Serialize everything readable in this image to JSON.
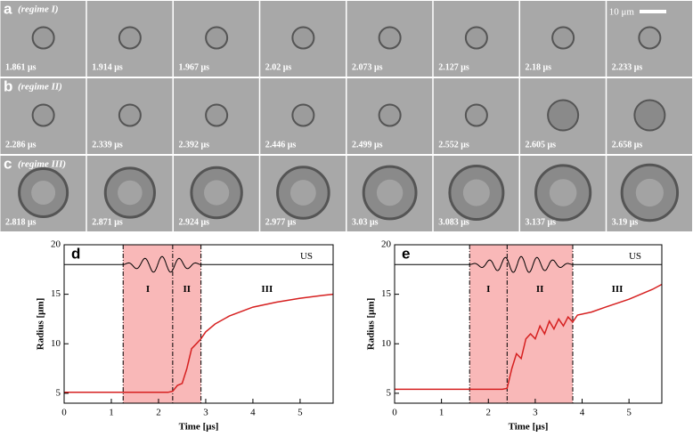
{
  "panels": [
    {
      "label": "a",
      "regime": "(regime I)",
      "frames": [
        "1.861 μs",
        "1.914 μs",
        "1.967 μs",
        "2.02 μs",
        "2.073 μs",
        "2.127 μs",
        "2.18 μs",
        "2.233 μs"
      ]
    },
    {
      "label": "b",
      "regime": "(regime II)",
      "frames": [
        "2.286 μs",
        "2.339 μs",
        "2.392 μs",
        "2.446 μs",
        "2.499 μs",
        "2.552 μs",
        "2.605 μs",
        "2.658 μs"
      ]
    },
    {
      "label": "c",
      "regime": "(regime III)",
      "frames": [
        "2.818 μs",
        "2.871 μs",
        "2.924 μs",
        "2.977 μs",
        "3.03 μs",
        "3.083 μs",
        "3.137 μs",
        "3.19 μs"
      ]
    }
  ],
  "scale_bar": "10 μm",
  "chart_data": [
    {
      "type": "line",
      "label": "d",
      "xlabel": "Time [μs]",
      "ylabel": "Radius [μm]",
      "xlim": [
        0,
        5.7
      ],
      "ylim": [
        4,
        20
      ],
      "xticks": [
        0,
        1,
        2,
        3,
        4,
        5
      ],
      "yticks": [
        5,
        10,
        15,
        20
      ],
      "boundaries": [
        1.25,
        2.3,
        2.9
      ],
      "regions": [
        "I",
        "II",
        "III"
      ],
      "us_label": "US",
      "series": [
        {
          "color": "#d62020",
          "x": [
            0,
            0.5,
            1,
            1.5,
            2,
            2.2,
            2.3,
            2.4,
            2.5,
            2.6,
            2.7,
            2.8,
            2.9,
            3.0,
            3.2,
            3.5,
            4,
            4.5,
            5,
            5.5,
            5.7
          ],
          "values": [
            5.1,
            5.1,
            5.1,
            5.1,
            5.1,
            5.1,
            5.2,
            5.8,
            6.0,
            7.5,
            9.5,
            10,
            10.5,
            11.2,
            12,
            12.8,
            13.7,
            14.2,
            14.6,
            14.9,
            15
          ]
        }
      ]
    },
    {
      "type": "line",
      "label": "e",
      "xlabel": "Time [μs]",
      "ylabel": "Radius [μm]",
      "xlim": [
        0,
        5.7
      ],
      "ylim": [
        4,
        20
      ],
      "xticks": [
        0,
        1,
        2,
        3,
        4,
        5
      ],
      "yticks": [
        5,
        10,
        15,
        20
      ],
      "boundaries": [
        1.6,
        2.4,
        3.8
      ],
      "regions": [
        "I",
        "II",
        "III"
      ],
      "us_label": "US",
      "series": [
        {
          "color": "#d62020",
          "x": [
            0,
            0.5,
            1,
            1.5,
            2,
            2.3,
            2.4,
            2.5,
            2.6,
            2.7,
            2.8,
            2.9,
            3.0,
            3.1,
            3.2,
            3.3,
            3.4,
            3.5,
            3.6,
            3.7,
            3.8,
            3.9,
            4.2,
            4.5,
            5,
            5.5,
            5.7
          ],
          "values": [
            5.4,
            5.4,
            5.4,
            5.4,
            5.4,
            5.4,
            5.5,
            7.5,
            9,
            8.5,
            10.5,
            11,
            10.5,
            11.8,
            11,
            12.3,
            11.5,
            12.5,
            11.8,
            12.7,
            12.2,
            12.9,
            13.2,
            13.7,
            14.5,
            15.5,
            16
          ]
        }
      ]
    }
  ]
}
